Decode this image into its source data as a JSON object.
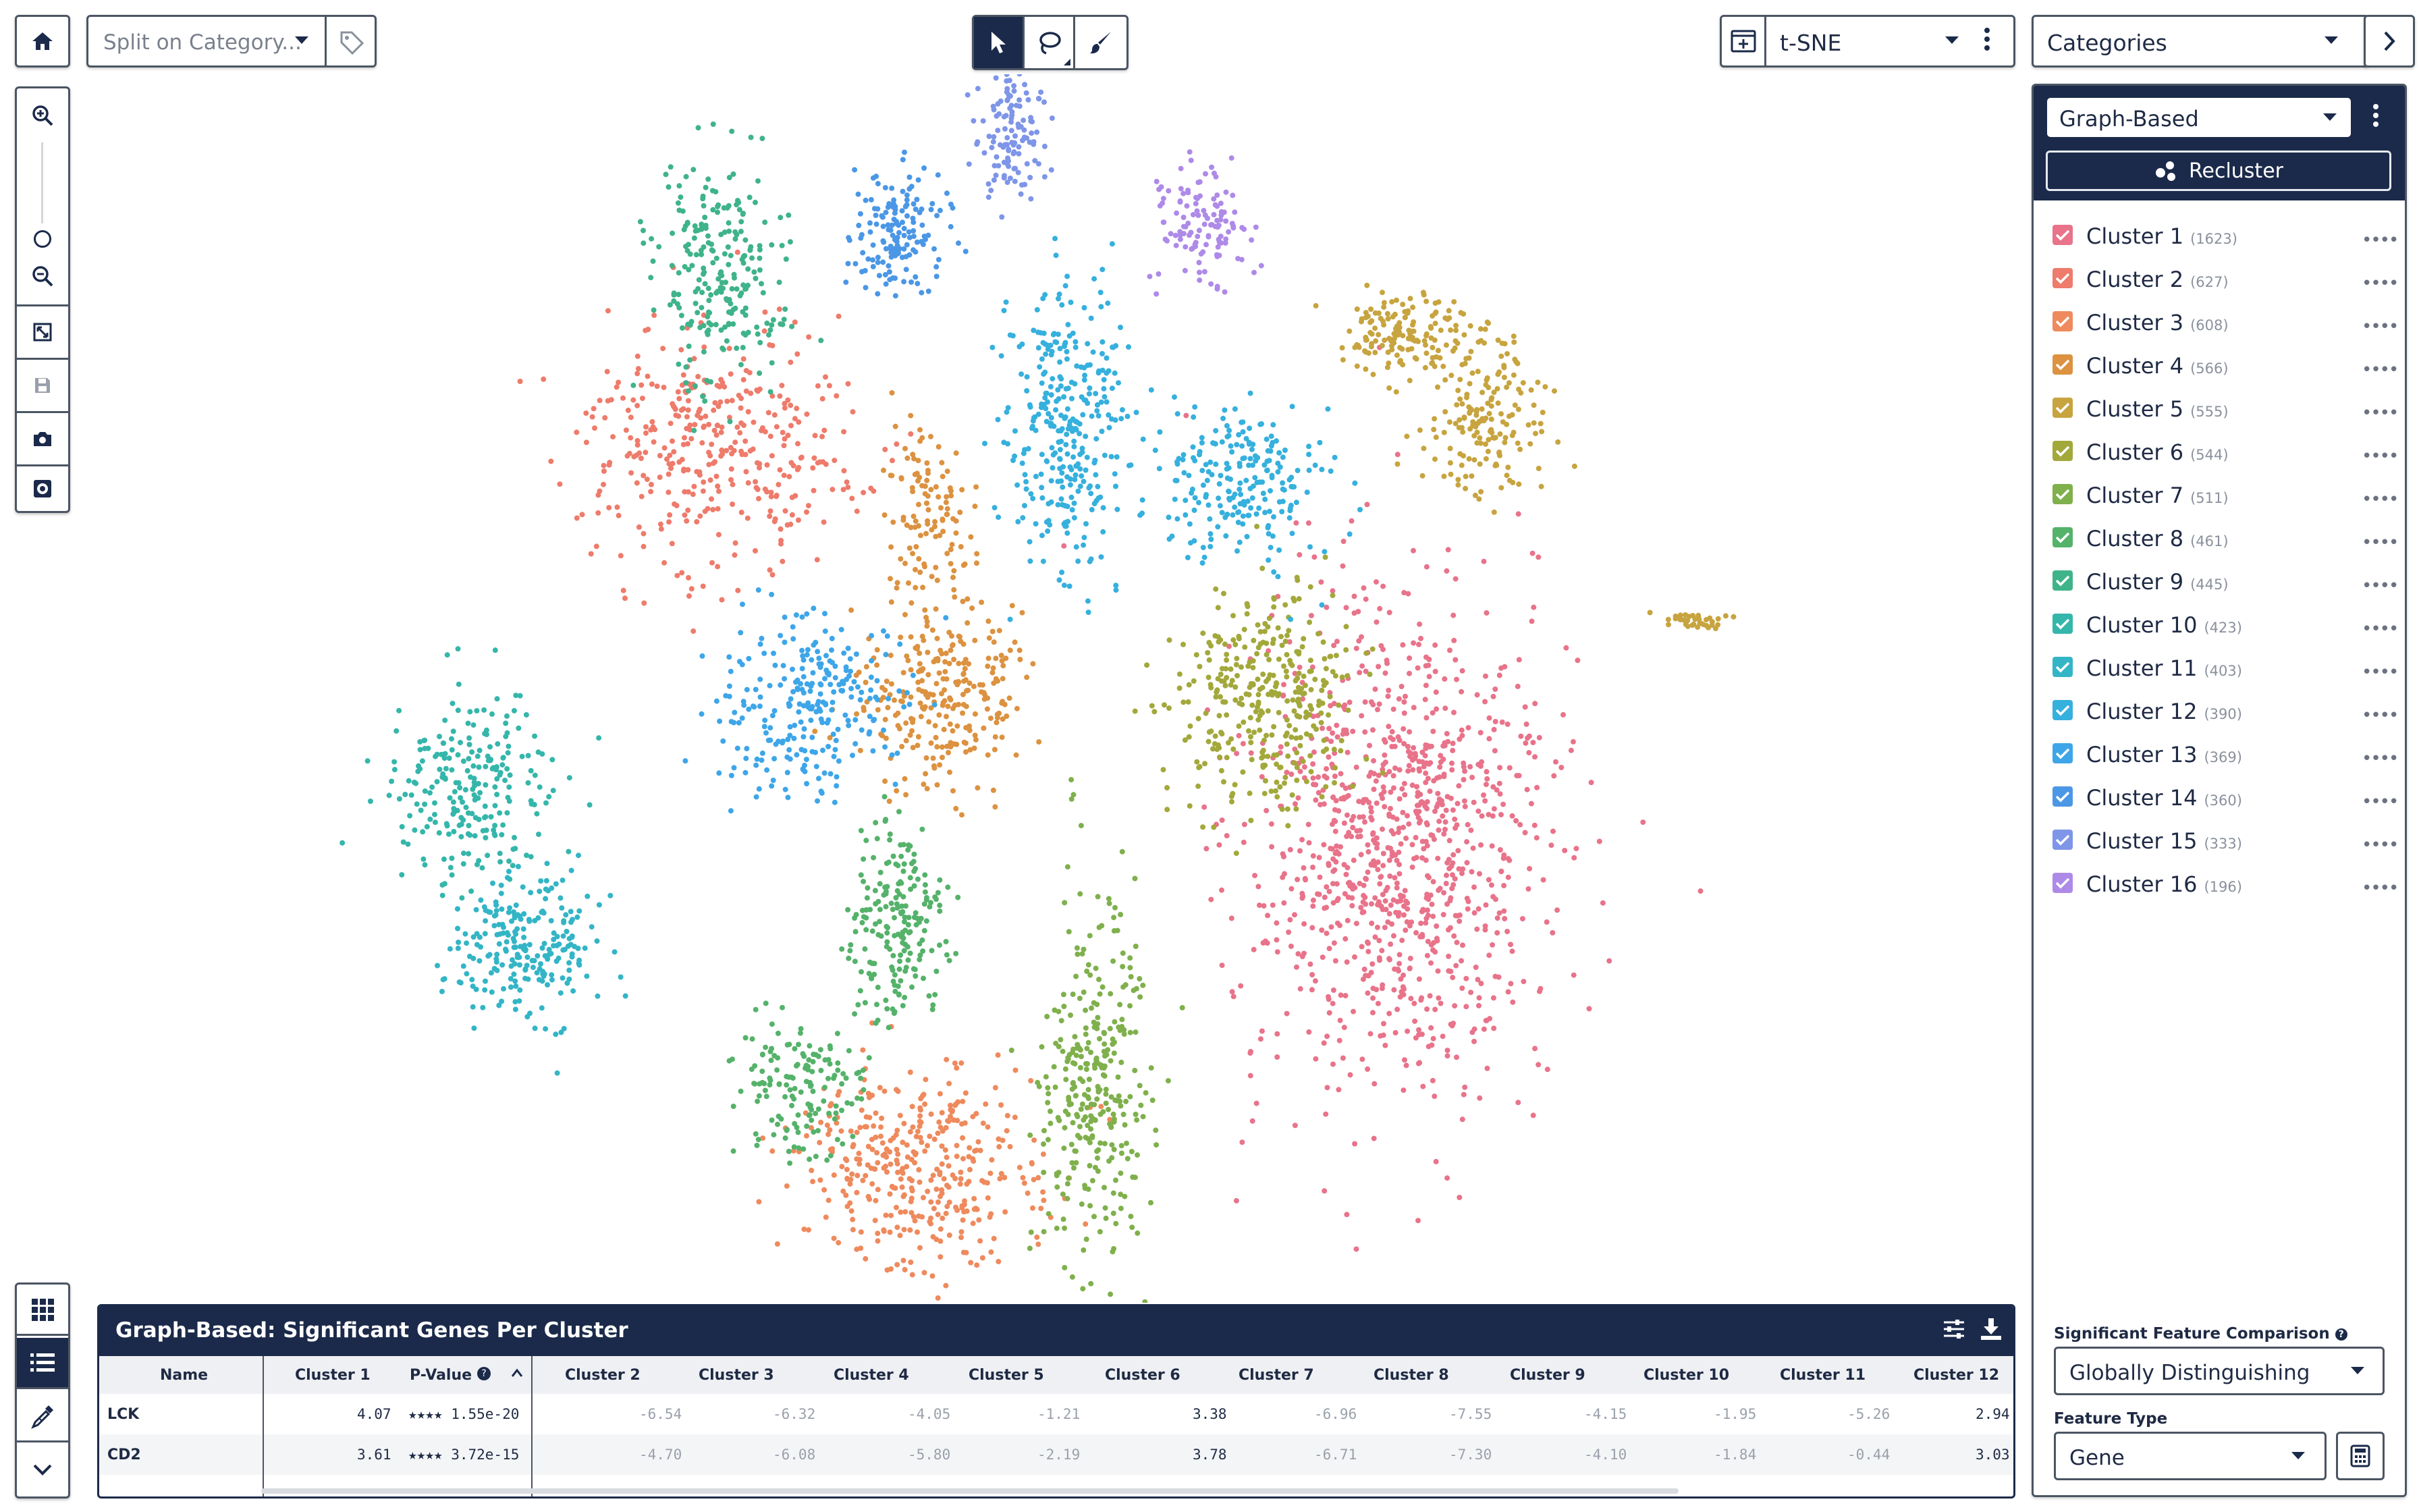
{
  "toolbar": {
    "split_placeholder": "Split on Category...",
    "projection": "t-SNE",
    "categories": "Categories"
  },
  "cluster_panel": {
    "algorithm": "Graph-Based",
    "recluster_label": "Recluster",
    "clusters": [
      {
        "name": "Cluster 1",
        "count": "(1623)",
        "color": "#e8738a"
      },
      {
        "name": "Cluster 2",
        "count": "(627)",
        "color": "#ee7b6b"
      },
      {
        "name": "Cluster 3",
        "count": "(608)",
        "color": "#ee8a5d"
      },
      {
        "name": "Cluster 4",
        "count": "(566)",
        "color": "#dc9240"
      },
      {
        "name": "Cluster 5",
        "count": "(555)",
        "color": "#c7a43f"
      },
      {
        "name": "Cluster 6",
        "count": "(544)",
        "color": "#a3a83b"
      },
      {
        "name": "Cluster 7",
        "count": "(511)",
        "color": "#7fb04c"
      },
      {
        "name": "Cluster 8",
        "count": "(461)",
        "color": "#55b26a"
      },
      {
        "name": "Cluster 9",
        "count": "(445)",
        "color": "#3fb38a"
      },
      {
        "name": "Cluster 10",
        "count": "(423)",
        "color": "#35b6ab"
      },
      {
        "name": "Cluster 11",
        "count": "(403)",
        "color": "#33b5c6"
      },
      {
        "name": "Cluster 12",
        "count": "(390)",
        "color": "#36b0dd"
      },
      {
        "name": "Cluster 13",
        "count": "(369)",
        "color": "#3ea6e8"
      },
      {
        "name": "Cluster 14",
        "count": "(360)",
        "color": "#4b97e6"
      },
      {
        "name": "Cluster 15",
        "count": "(333)",
        "color": "#7e95e8"
      },
      {
        "name": "Cluster 16",
        "count": "(196)",
        "color": "#ae8ae8"
      }
    ],
    "sfc_label": "Significant Feature Comparison",
    "sfc_value": "Globally Distinguishing",
    "feature_type_label": "Feature Type",
    "feature_type_value": "Gene"
  },
  "genes_table": {
    "title": "Graph-Based: Significant Genes Per Cluster",
    "columns": [
      "Name",
      "Cluster 1",
      "P-Value",
      "Cluster 2",
      "Cluster 3",
      "Cluster 4",
      "Cluster 5",
      "Cluster 6",
      "Cluster 7",
      "Cluster 8",
      "Cluster 9",
      "Cluster 10",
      "Cluster 11",
      "Cluster 12"
    ],
    "rows": [
      {
        "name": "LCK",
        "c1": "4.07",
        "pval": "★★★★ 1.55e-20",
        "rest": [
          "-6.54",
          "-6.32",
          "-4.05",
          "-1.21",
          "3.38",
          "-6.96",
          "-7.55",
          "-4.15",
          "-1.95",
          "-5.26",
          "2.94"
        ]
      },
      {
        "name": "CD2",
        "c1": "3.61",
        "pval": "★★★★ 3.72e-15",
        "rest": [
          "-4.70",
          "-6.08",
          "-5.80",
          "-2.19",
          "3.78",
          "-6.71",
          "-7.30",
          "-4.10",
          "-1.84",
          "-0.44",
          "3.03"
        ]
      }
    ]
  }
}
